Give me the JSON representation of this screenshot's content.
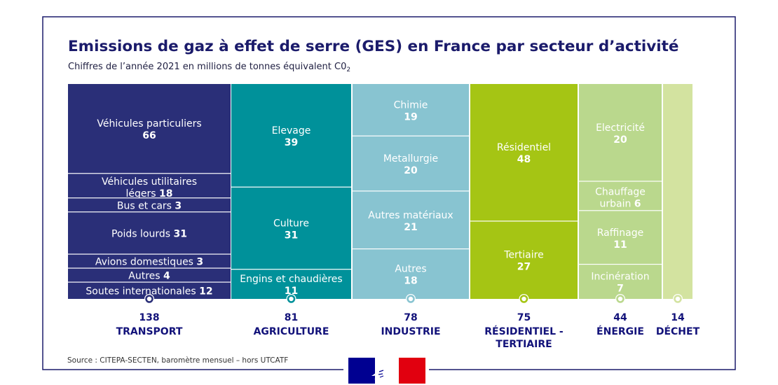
{
  "title": "Emissions de gaz à effet de serre (GES) en France par secteur d’activité",
  "subtitle_main": "Chiffres de l’année 2021 en millions de tonnes équivalent C0",
  "subtitle_sub": "2",
  "source": "Source : CITEPA-SECTEN, baromètre mensuel – hors UTCATF",
  "colors": {
    "title": "#1b1b6b",
    "frame": "#1b1b6b",
    "value_text": "#2b2b7a",
    "sector_text": "#12127a",
    "flag_blue": "#000091",
    "flag_red": "#e1000f"
  },
  "chart_data": {
    "type": "treemap",
    "unit": "millions de tonnes équivalent CO2",
    "sectors": [
      {
        "name": "TRANSPORT",
        "total": 138,
        "color": "#2a2f78",
        "text_color": "#ffffff",
        "items": [
          {
            "name": "Véhicules particuliers",
            "value": 66,
            "layout": "stacked"
          },
          {
            "name": "Véhicules utilitaires légers",
            "name_line1": "Véhicules utilitaires",
            "name_line2": "légers",
            "value": 18,
            "layout": "two-line-inline"
          },
          {
            "name": "Bus et cars",
            "value": 3,
            "layout": "inline"
          },
          {
            "name": "Poids lourds",
            "value": 31,
            "layout": "inline"
          },
          {
            "name": "Avions domestiques",
            "value": 3,
            "layout": "inline"
          },
          {
            "name": "Autres",
            "value": 4,
            "layout": "inline"
          },
          {
            "name": "Soutes internationales",
            "value": 12,
            "layout": "inline"
          }
        ]
      },
      {
        "name": "AGRICULTURE",
        "total": 81,
        "color": "#00919a",
        "text_color": "#ffffff",
        "items": [
          {
            "name": "Elevage",
            "value": 39,
            "layout": "stacked"
          },
          {
            "name": "Culture",
            "value": 31,
            "layout": "stacked"
          },
          {
            "name": "Engins et chaudières",
            "value": 11,
            "layout": "stacked"
          }
        ]
      },
      {
        "name": "INDUSTRIE",
        "total": 78,
        "color": "#88c4d1",
        "text_color": "#ffffff",
        "items": [
          {
            "name": "Chimie",
            "value": 19,
            "layout": "stacked"
          },
          {
            "name": "Metallurgie",
            "value": 20,
            "layout": "stacked"
          },
          {
            "name": "Autres matériaux",
            "value": 21,
            "layout": "stacked"
          },
          {
            "name": "Autres",
            "value": 18,
            "layout": "stacked"
          }
        ]
      },
      {
        "name": "RÉSIDENTIEL - TERTIAIRE",
        "name_line1": "RÉSIDENTIEL -",
        "name_line2": "TERTIAIRE",
        "total": 75,
        "color": "#a5c514",
        "text_color": "#ffffff",
        "items": [
          {
            "name": "Résidentiel",
            "value": 48,
            "layout": "stacked"
          },
          {
            "name": "Tertiaire",
            "value": 27,
            "layout": "stacked"
          }
        ]
      },
      {
        "name": "ÉNERGIE",
        "total": 44,
        "color": "#bad88d",
        "text_color": "#ffffff",
        "items": [
          {
            "name": "Electricité",
            "value": 20,
            "layout": "stacked"
          },
          {
            "name": "Chauffage urbain",
            "name_line1": "Chauffage",
            "name_line2": "urbain",
            "value": 6,
            "layout": "two-line-inline"
          },
          {
            "name": "Raffinage",
            "value": 11,
            "layout": "stacked"
          },
          {
            "name": "Incinération",
            "value": 7,
            "layout": "stacked"
          }
        ]
      },
      {
        "name": "DÉCHET",
        "total": 14,
        "color": "#d3e3a0",
        "text_color": "#ffffff",
        "items": []
      }
    ]
  }
}
